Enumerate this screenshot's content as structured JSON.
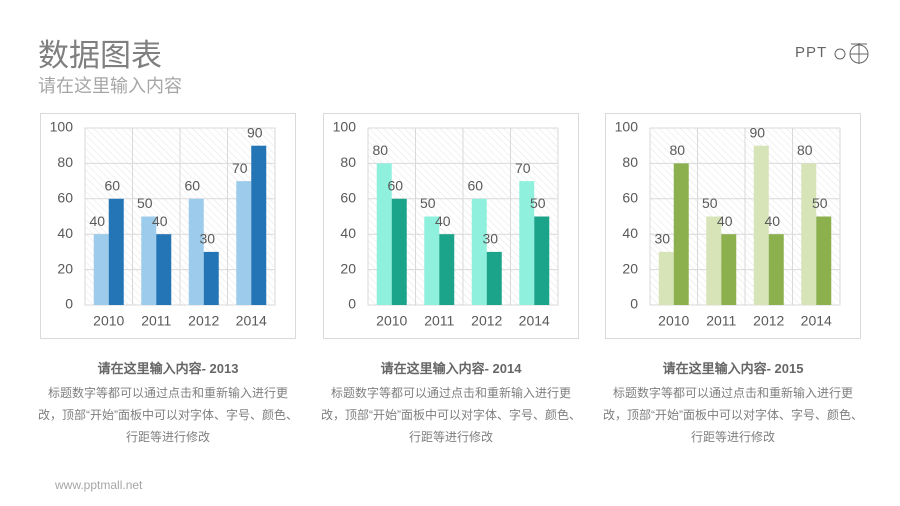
{
  "header": {
    "title": "数据图表",
    "subtitle": "请在这里输入内容",
    "logo": "PPT"
  },
  "chart_data": [
    {
      "type": "bar",
      "categories": [
        "2010",
        "2011",
        "2012",
        "2014"
      ],
      "ylim": [
        0,
        100
      ],
      "yticks": [
        0,
        20,
        40,
        60,
        80,
        100
      ],
      "grid": true,
      "series": [
        {
          "color": "#9dcbeb",
          "values": [
            40,
            50,
            60,
            70
          ]
        },
        {
          "color": "#2475b5",
          "values": [
            60,
            40,
            30,
            90
          ]
        }
      ]
    },
    {
      "type": "bar",
      "categories": [
        "2010",
        "2011",
        "2012",
        "2014"
      ],
      "ylim": [
        0,
        100
      ],
      "yticks": [
        0,
        20,
        40,
        60,
        80,
        100
      ],
      "grid": true,
      "series": [
        {
          "color": "#8ff0de",
          "values": [
            80,
            50,
            60,
            70
          ]
        },
        {
          "color": "#1ba48a",
          "values": [
            60,
            40,
            30,
            50
          ]
        }
      ]
    },
    {
      "type": "bar",
      "categories": [
        "2010",
        "2011",
        "2012",
        "2014"
      ],
      "ylim": [
        0,
        100
      ],
      "yticks": [
        0,
        20,
        40,
        60,
        80,
        100
      ],
      "grid": true,
      "series": [
        {
          "color": "#d6e4b8",
          "values": [
            30,
            50,
            90,
            80
          ]
        },
        {
          "color": "#8db04f",
          "values": [
            80,
            40,
            40,
            50
          ]
        }
      ]
    }
  ],
  "captions": [
    {
      "title": "请在这里输入内容- 2013",
      "text": "标题数字等都可以通过点击和重新输入进行更改，顶部“开始”面板中可以对字体、字号、颜色、行距等进行修改"
    },
    {
      "title": "请在这里输入内容- 2014",
      "text": "标题数字等都可以通过点击和重新输入进行更改，顶部“开始”面板中可以对字体、字号、颜色、行距等进行修改"
    },
    {
      "title": "请在这里输入内容- 2015",
      "text": "标题数字等都可以通过点击和重新输入进行更改，顶部“开始”面板中可以对字体、字号、颜色、行距等进行修改"
    }
  ],
  "footer": "www.pptmall.net"
}
